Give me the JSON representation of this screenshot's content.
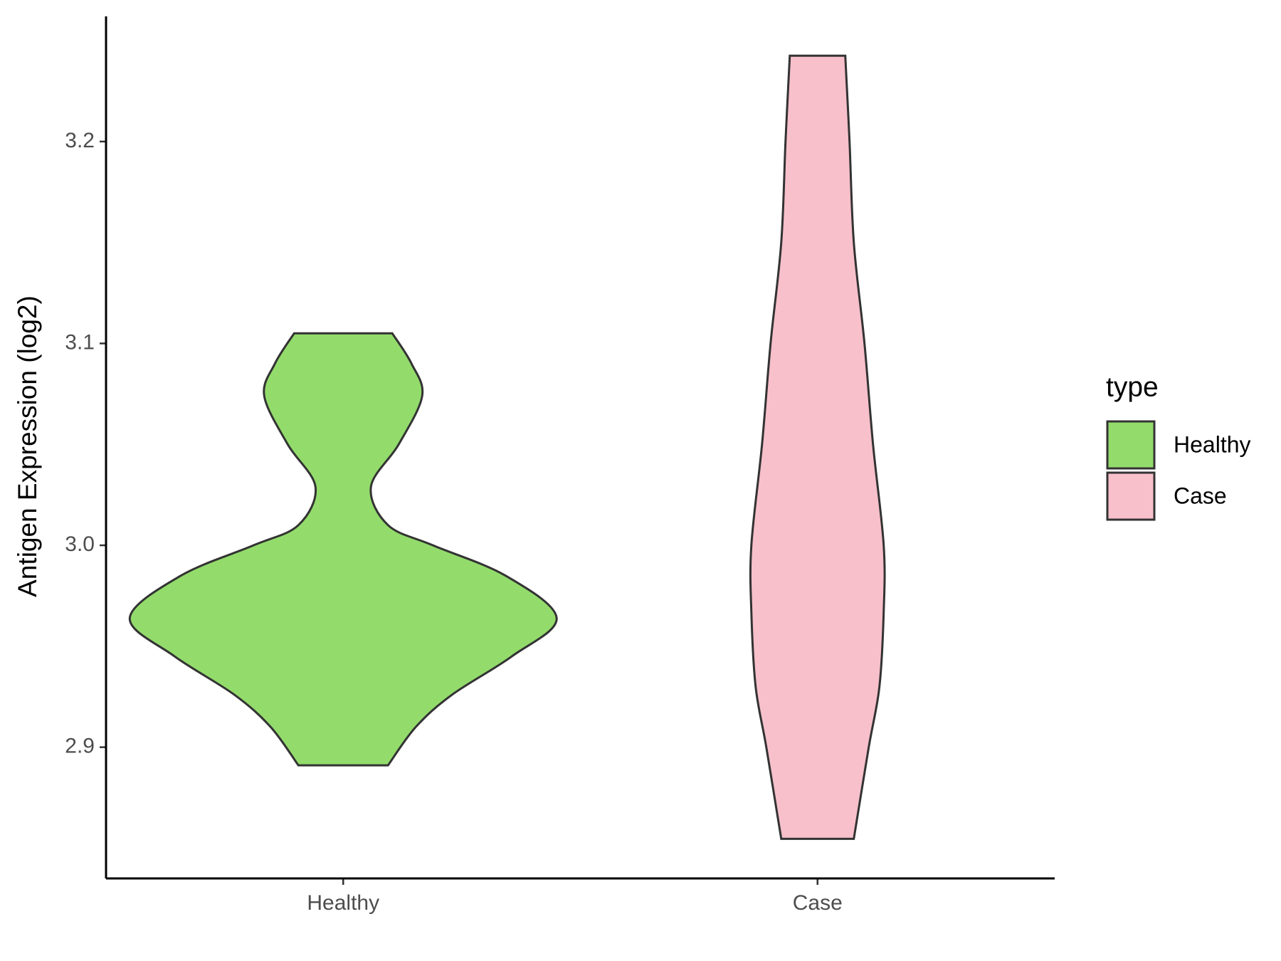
{
  "chart_data": {
    "type": "violin",
    "y_label": "Antigen Expression (log2)",
    "categories": [
      "Healthy",
      "Case"
    ],
    "ylim": [
      2.835,
      3.262
    ],
    "yticks": [
      2.9,
      {
        "value": 3,
        "label": "3.0"
      },
      3.1,
      3.2
    ],
    "legend_title": "type",
    "legend": "right",
    "series": [
      {
        "name": "Healthy",
        "color": "#93dc6c",
        "profile": {
          "y": [
            3.105,
            3.09,
            3.074,
            3.05,
            3.029,
            3.01,
            3.0,
            2.985,
            2.964,
            2.945,
            2.926,
            2.91,
            2.891
          ],
          "density": [
            0.23,
            0.32,
            0.37,
            0.26,
            0.13,
            0.21,
            0.42,
            0.76,
            1,
            0.79,
            0.51,
            0.34,
            0.21
          ]
        }
      },
      {
        "name": "Case",
        "color": "#f7c0cb",
        "profile": {
          "y": [
            3.2425,
            3.2,
            3.15,
            3.1,
            3.05,
            3.0,
            2.967,
            2.93,
            2.9,
            2.8546
          ],
          "density": [
            0.13,
            0.15,
            0.17,
            0.22,
            0.26,
            0.31,
            0.31,
            0.29,
            0.24,
            0.17
          ]
        }
      }
    ]
  }
}
